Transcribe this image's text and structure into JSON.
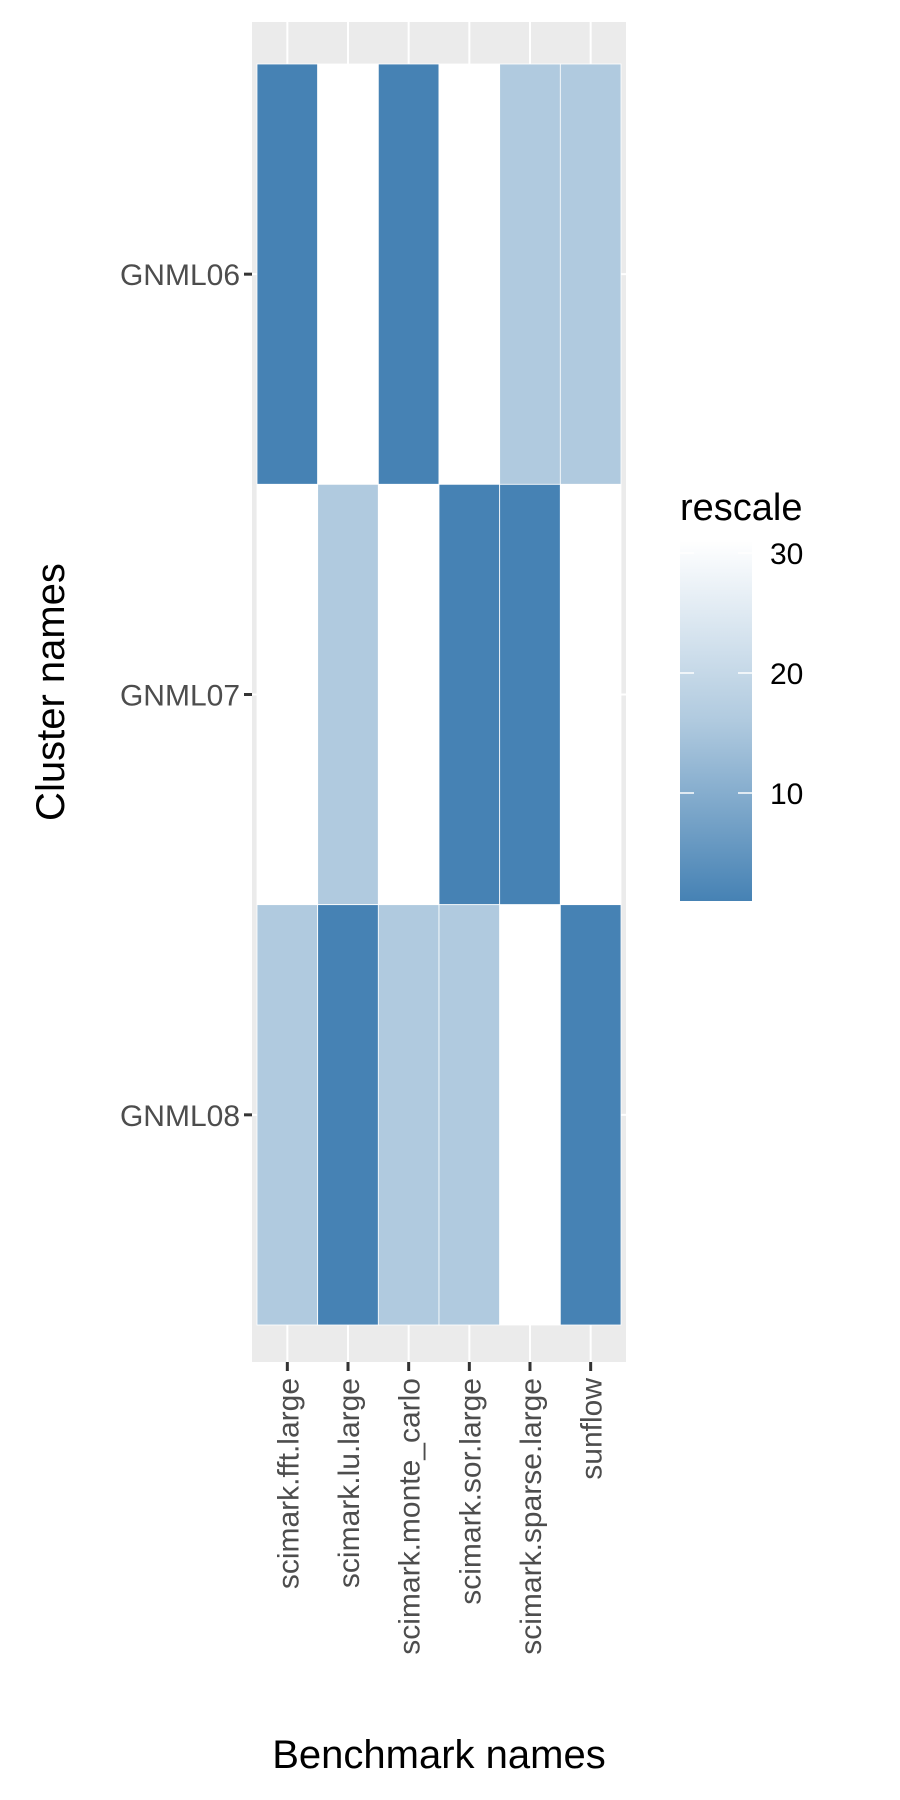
{
  "chart_data": {
    "type": "heatmap",
    "xlabel": "Benchmark names",
    "ylabel": "Cluster names",
    "x_categories": [
      "scimark.fft.large",
      "scimark.lu.large",
      "scimark.monte_carlo",
      "scimark.sor.large",
      "scimark.sparse.large",
      "sunflow"
    ],
    "y_categories": [
      "GNML06",
      "GNML07",
      "GNML08"
    ],
    "values": [
      [
        1,
        31,
        1,
        31,
        16,
        16
      ],
      [
        31,
        16,
        31,
        1,
        1,
        31
      ],
      [
        16,
        1,
        16,
        16,
        31,
        1
      ]
    ],
    "legend": {
      "title": "rescale",
      "ticks": [
        10,
        20,
        30
      ],
      "range": [
        1,
        31
      ],
      "low_color": "#4682b4",
      "high_color": "#ffffff",
      "placement": "right"
    },
    "panel_background": "#ebebeb",
    "grid": true
  }
}
